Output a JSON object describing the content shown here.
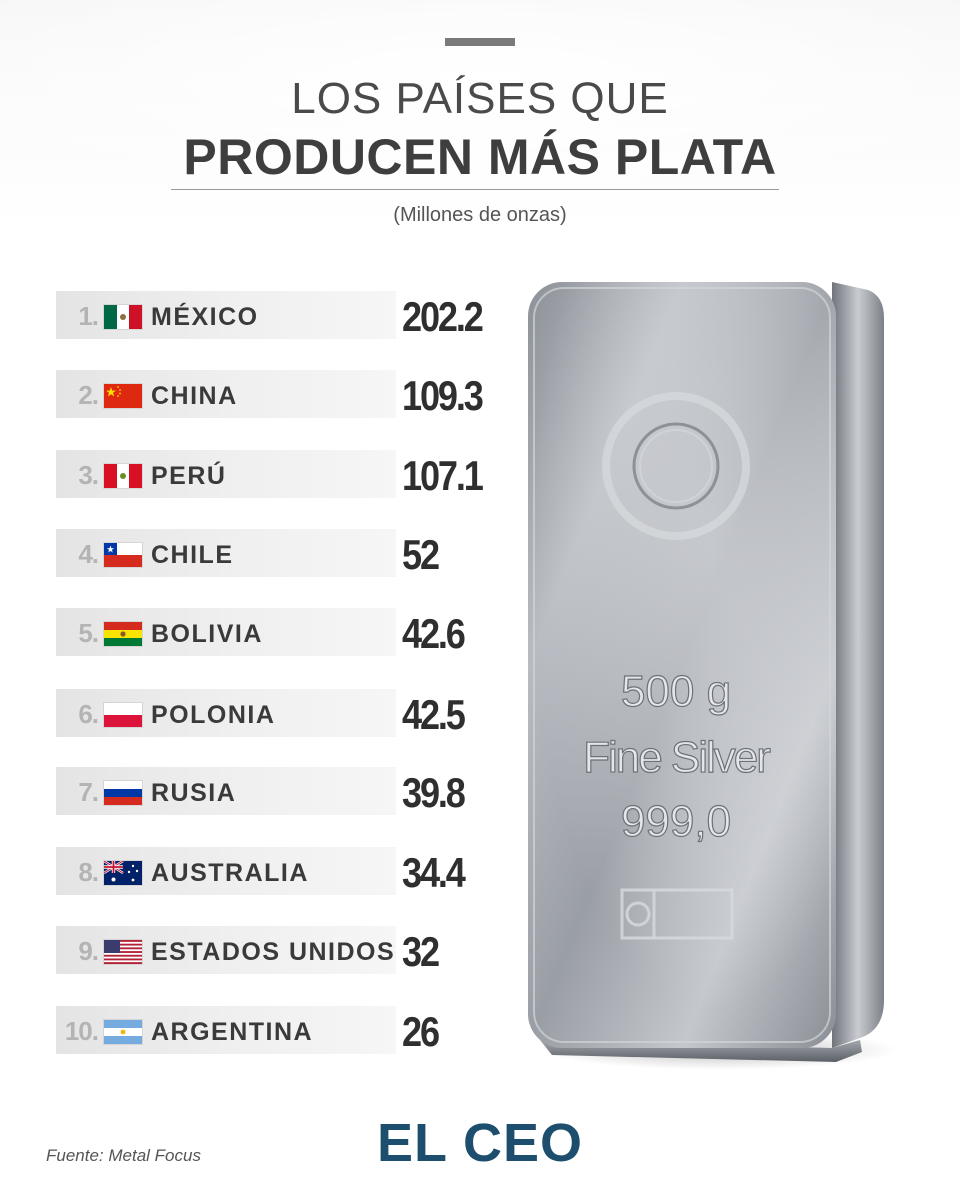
{
  "header": {
    "title_line1": "LOS PAÍSES QUE",
    "title_line2": "PRODUCEN MÁS PLATA",
    "subtitle": "(Millones de onzas)"
  },
  "ranking": [
    {
      "rank": "1.",
      "country": "MÉXICO",
      "value": "202.2",
      "flag": "mexico-flag-icon"
    },
    {
      "rank": "2.",
      "country": "CHINA",
      "value": "109.3",
      "flag": "china-flag-icon"
    },
    {
      "rank": "3.",
      "country": "PERÚ",
      "value": "107.1",
      "flag": "peru-flag-icon"
    },
    {
      "rank": "4.",
      "country": "CHILE",
      "value": "52",
      "flag": "chile-flag-icon"
    },
    {
      "rank": "5.",
      "country": "BOLIVIA",
      "value": "42.6",
      "flag": "bolivia-flag-icon"
    },
    {
      "rank": "6.",
      "country": "POLONIA",
      "value": "42.5",
      "flag": "poland-flag-icon"
    },
    {
      "rank": "7.",
      "country": "RUSIA",
      "value": "39.8",
      "flag": "russia-flag-icon"
    },
    {
      "rank": "8.",
      "country": "AUSTRALIA",
      "value": "34.4",
      "flag": "australia-flag-icon"
    },
    {
      "rank": "9.",
      "country": "ESTADOS UNIDOS",
      "value": "32",
      "flag": "usa-flag-icon"
    },
    {
      "rank": "10.",
      "country": "ARGENTINA",
      "value": "26",
      "flag": "argentina-flag-icon"
    }
  ],
  "silver_bar": {
    "weight": "500 g",
    "label": "Fine Silver",
    "purity": "999,0"
  },
  "footer": {
    "source": "Fuente: Metal Focus",
    "logo": "EL CEO"
  },
  "colors": {
    "logo": "#1d4e6d",
    "rank_text": "#b4b4b4",
    "value_text": "#2f2f2f"
  }
}
